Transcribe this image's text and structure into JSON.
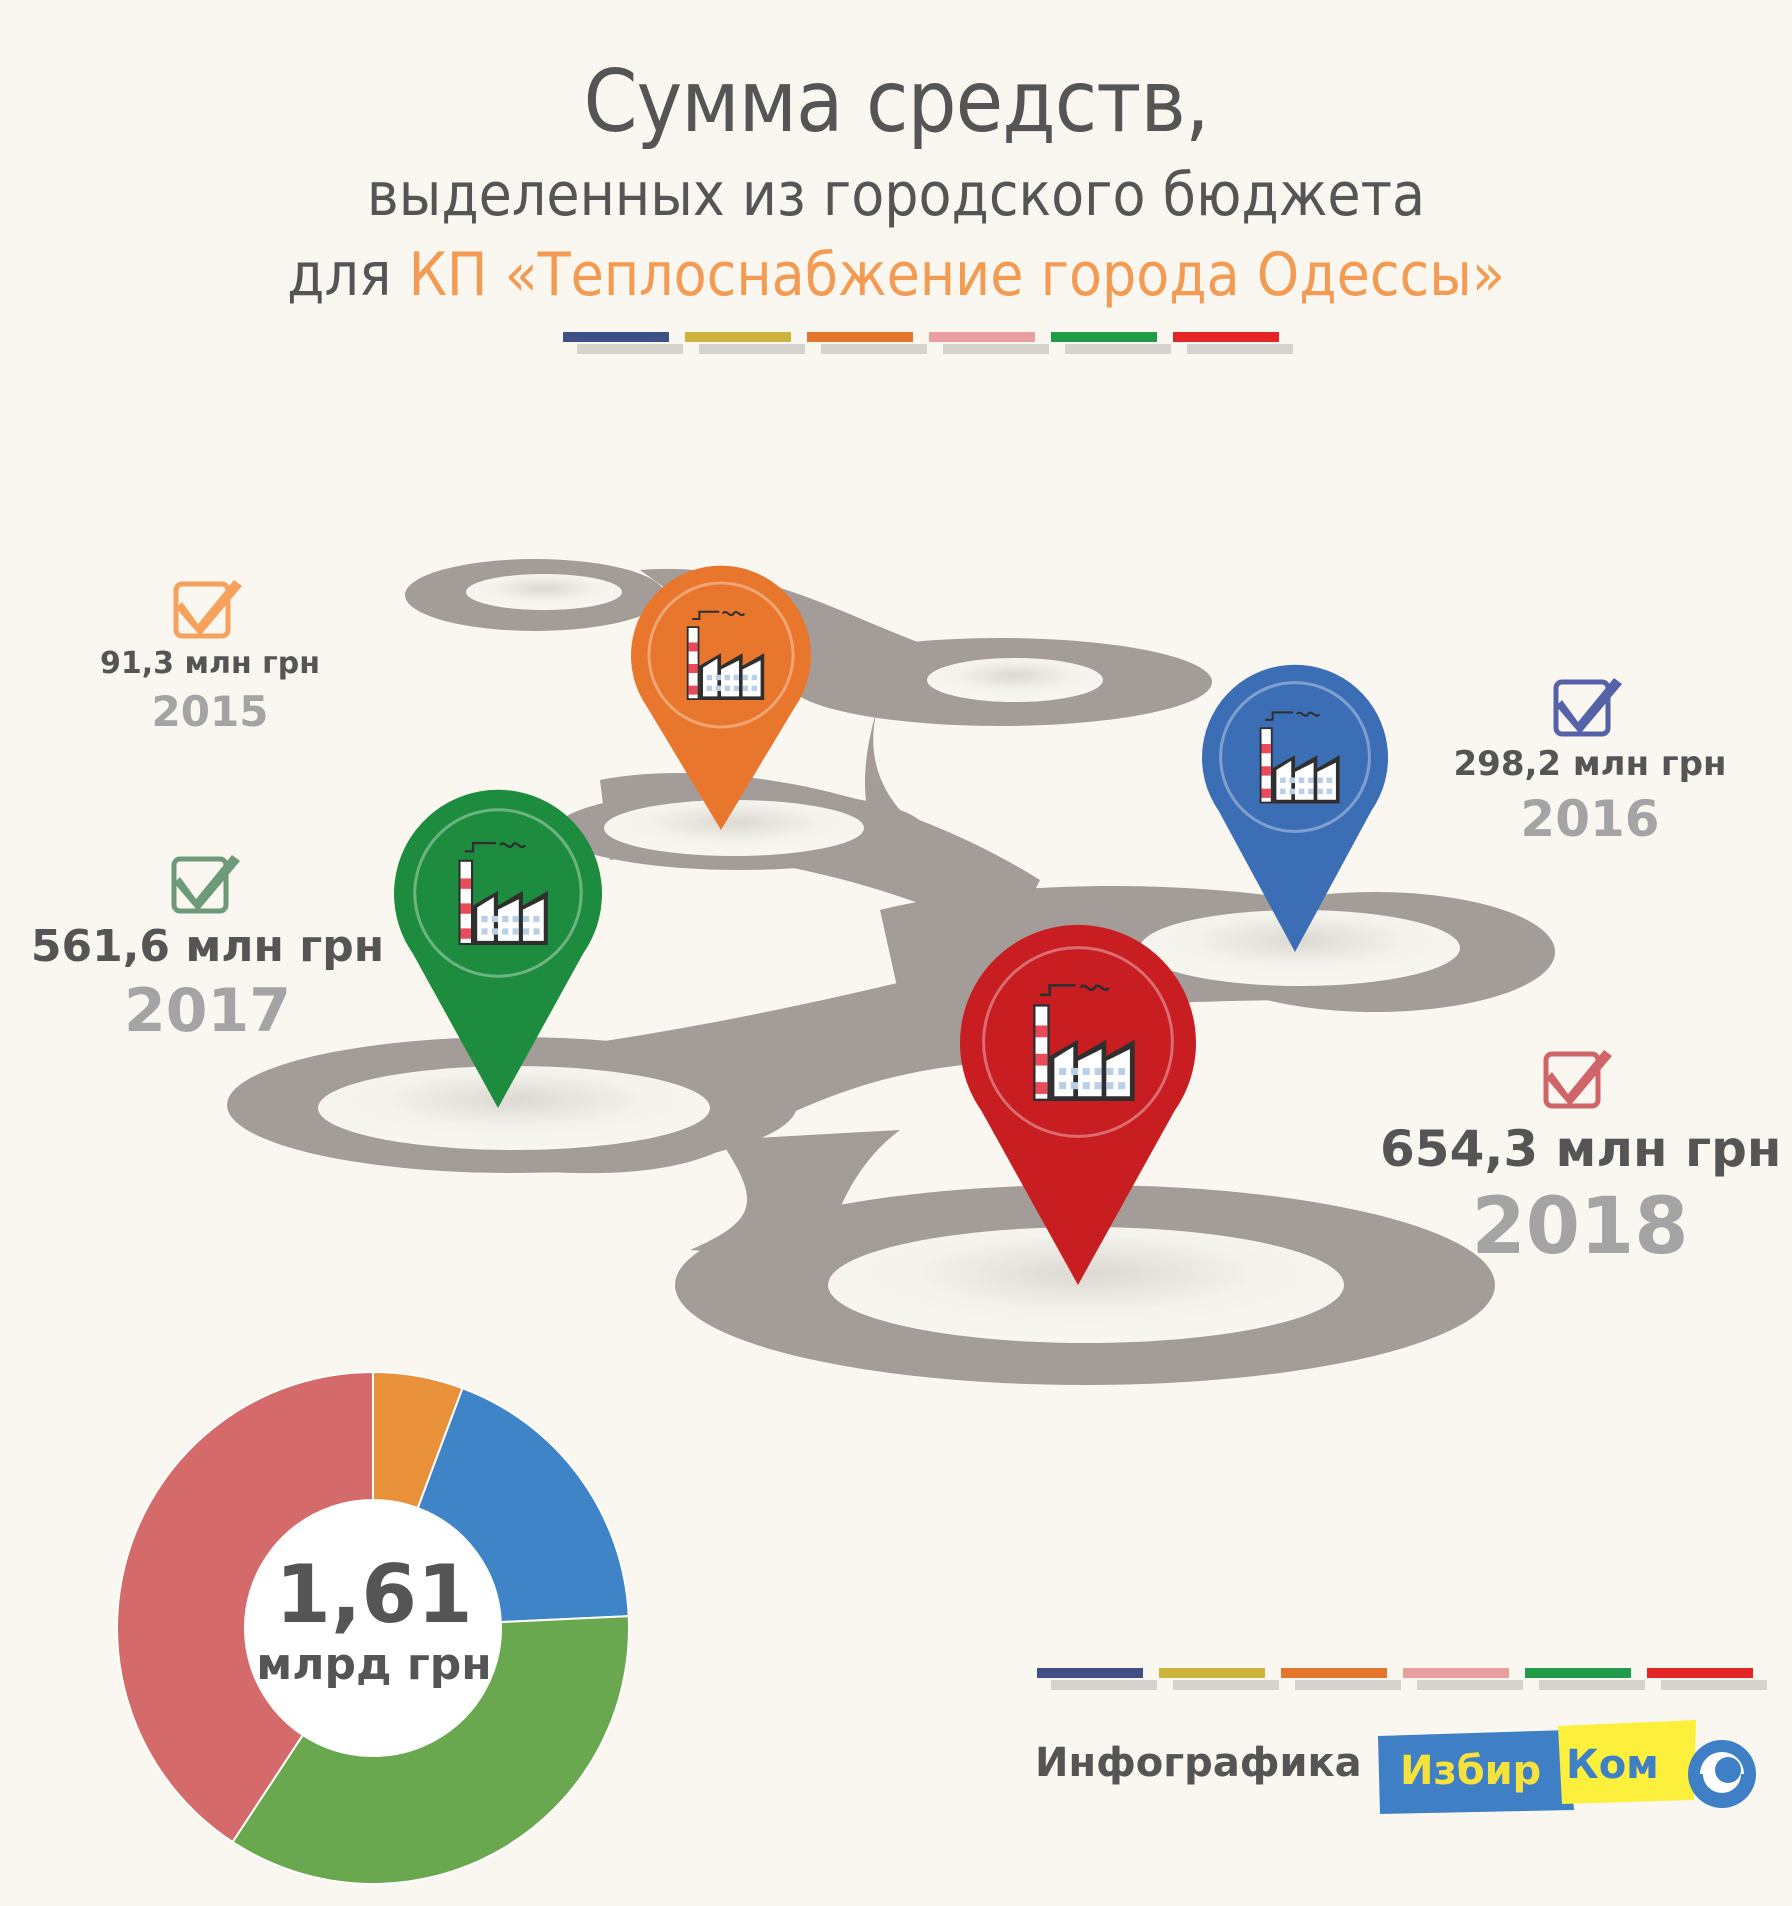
{
  "title": {
    "line1": "Сумма средств,",
    "line2": "выделенных из городского бюджета",
    "line3_prefix": "для",
    "line3_accent": "КП «Теплоснабжение города Одессы»"
  },
  "palette": {
    "stripes": [
      "#3f5087",
      "#cdb23c",
      "#e3762c",
      "#e99ea0",
      "#1f9b4a",
      "#e32528"
    ],
    "accent_orange": "#f39b53",
    "road": "#a49c99",
    "pin_2015": "#e8762c",
    "pin_2016": "#3b6eb5",
    "pin_2017": "#1e8c3e",
    "pin_2018": "#c81e22"
  },
  "years": [
    {
      "year": "2015",
      "amount": "91,3 млн грн",
      "check_color": "#f6a25d"
    },
    {
      "year": "2016",
      "amount": "298,2 млн грн",
      "check_color": "#5562a8"
    },
    {
      "year": "2017",
      "amount": "561,6 млн грн",
      "check_color": "#6d9a79"
    },
    {
      "year": "2018",
      "amount": "654,3 млн грн",
      "check_color": "#d06569"
    }
  ],
  "chart_data": {
    "type": "pie",
    "categories": [
      "2015",
      "2016",
      "2017",
      "2018"
    ],
    "values": [
      91.3,
      298.2,
      561.6,
      654.3
    ],
    "colors": [
      "#e8913a",
      "#3e84c6",
      "#6aa84f",
      "#d46a6a"
    ],
    "center_value": "1,61",
    "center_unit": "млрд грн"
  },
  "footer": {
    "credit": "Инфографика",
    "logo_part1": "Избир",
    "logo_part2": "Ком"
  }
}
